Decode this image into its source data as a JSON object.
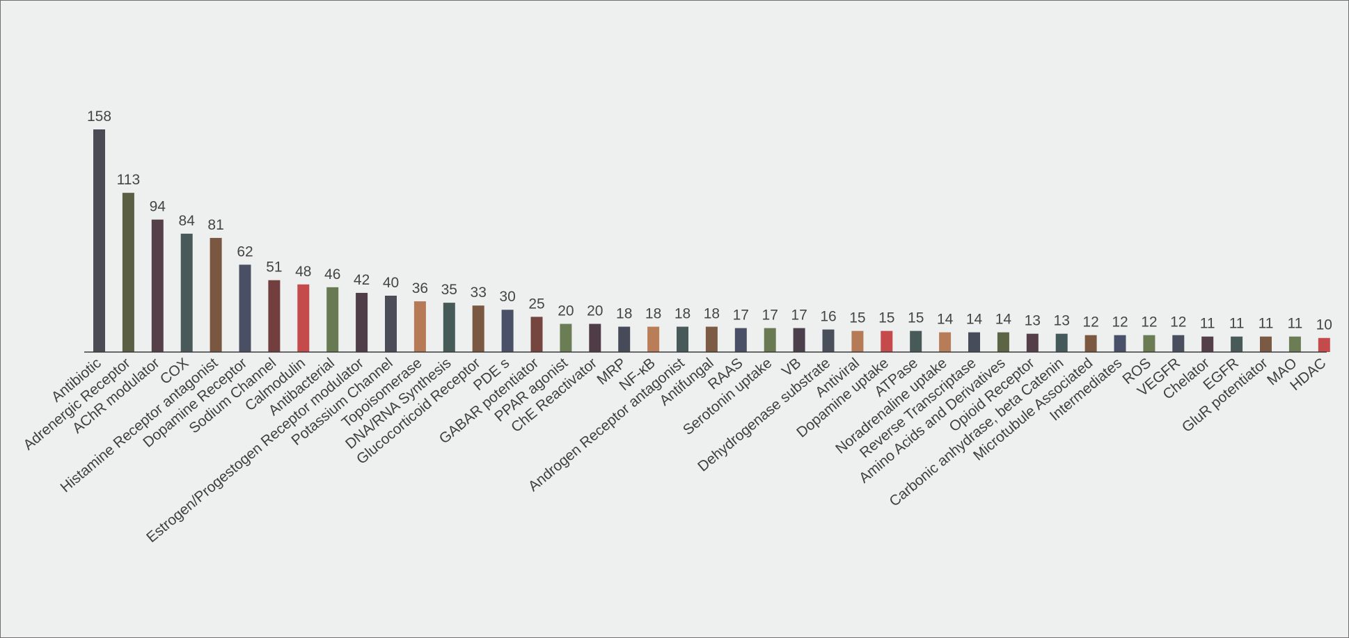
{
  "chart_data": {
    "type": "bar",
    "title": "",
    "xlabel": "",
    "ylabel": "",
    "ylim": [
      0,
      158
    ],
    "grid": false,
    "legend": "none",
    "data_labels": true,
    "categories": [
      "Antibiotic",
      "Adrenergic Receptor",
      "AChR modulator",
      "COX",
      "Histamine Receptor antagonist",
      "Dopamine Receptor",
      "Sodium Channel",
      "Calmodulin",
      "Antibacterial",
      "Estrogen/Progestogen Receptor modulator",
      "Potassium Channel",
      "Topoisomerase",
      "DNA/RNA Synthesis",
      "Glucocorticoid Receptor",
      "PDE  s",
      "GABAR potentiator",
      "PPAR agonist",
      "ChE Reactivator",
      "MRP",
      "NF-κB",
      "Androgen Receptor antagonist",
      "Antifungal",
      "RAAS",
      "Serotonin uptake",
      "VB",
      "Dehydrogenase substrate",
      "Antiviral",
      "Dopamine uptake",
      "ATPase",
      "Noradrenaline uptake",
      "Reverse Transcriptase",
      "Amino Acids and Derivatives",
      "Opioid Receptor",
      "Carbonic anhydrase, beta Catenin",
      "Microtubule Associated",
      "Intermediates",
      "ROS",
      "VEGFR",
      "Chelator",
      "EGFR",
      "GluR potentiator",
      "MAO",
      "HDAC"
    ],
    "values": [
      158,
      113,
      94,
      84,
      81,
      62,
      51,
      48,
      46,
      42,
      40,
      36,
      35,
      33,
      30,
      25,
      20,
      20,
      18,
      18,
      18,
      18,
      17,
      17,
      17,
      16,
      15,
      15,
      15,
      14,
      14,
      14,
      13,
      13,
      12,
      12,
      12,
      12,
      11,
      11,
      11,
      11,
      10
    ],
    "colors": [
      "#4a4b55",
      "#5b5f44",
      "#55404a",
      "#49595a",
      "#7a5741",
      "#4a4f63",
      "#733f3e",
      "#c44a4b",
      "#677a52",
      "#4f3e48",
      "#4a4d57",
      "#b77a57",
      "#465b58",
      "#7a5841",
      "#495068",
      "#754540",
      "#6b7d55",
      "#4f3c47",
      "#464a59",
      "#b97d57",
      "#475a59",
      "#7c5a43",
      "#484f66",
      "#697a53",
      "#4a3f4b",
      "#4a4f5c",
      "#b57b56",
      "#c44a4b",
      "#485a58",
      "#b77d59",
      "#474c5a",
      "#5c6446",
      "#543f49",
      "#46595a",
      "#7a5940",
      "#49506a",
      "#6b7b52",
      "#4a4f60",
      "#543e48",
      "#475a58",
      "#7b5a43",
      "#6c7d55",
      "#c44a4b"
    ]
  }
}
